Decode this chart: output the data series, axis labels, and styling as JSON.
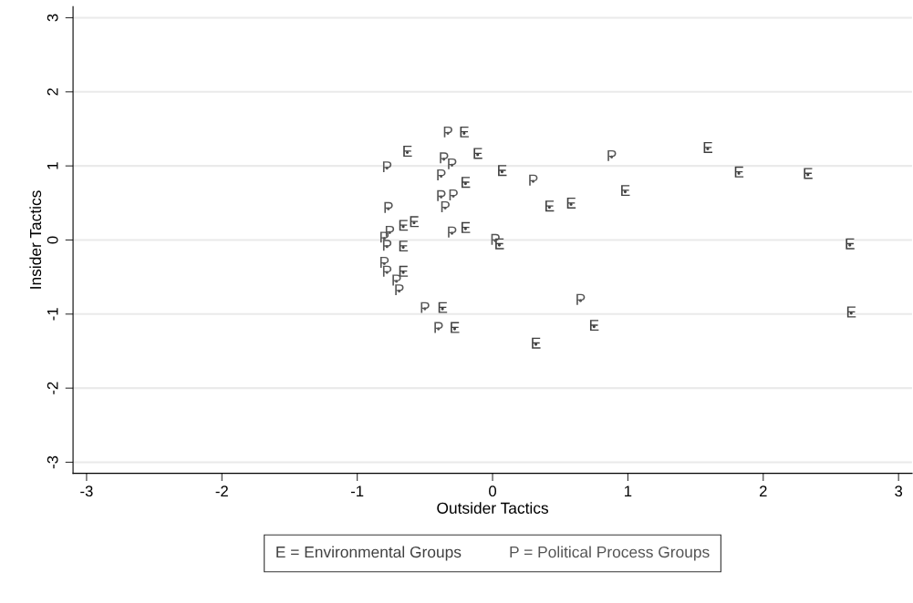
{
  "chart_data": {
    "type": "scatter",
    "xlabel": "Outsider Tactics",
    "ylabel": "Insider Tactics",
    "xlim": [
      -3.1,
      3.1
    ],
    "ylim": [
      -3.15,
      3.15
    ],
    "xticks": [
      -3,
      -2,
      -1,
      0,
      1,
      2,
      3
    ],
    "yticks": [
      -3,
      -2,
      -1,
      0,
      1,
      2,
      3
    ],
    "grid": "y",
    "legend": "bottom",
    "marker": "none",
    "series": [
      {
        "name": "E = Environmental Groups",
        "color": "#404040",
        "x": [
          -0.63,
          -0.21,
          -0.11,
          0.07,
          -0.2,
          0.98,
          0.58,
          0.42,
          1.59,
          1.82,
          2.33,
          2.64,
          2.65,
          0.75,
          0.32,
          -0.58,
          -0.66,
          -0.2,
          0.05,
          -0.66,
          -0.66,
          -0.37,
          -0.28
        ],
        "values": [
          1.18,
          1.44,
          1.15,
          0.92,
          0.76,
          0.65,
          0.48,
          0.44,
          1.23,
          0.9,
          0.88,
          -0.07,
          -0.99,
          -1.17,
          -1.41,
          0.23,
          0.18,
          0.15,
          -0.07,
          -0.1,
          -0.44,
          -0.93,
          -1.2
        ],
        "value_labels": [
          "E",
          "E",
          "E",
          "E",
          "E",
          "E",
          "E",
          "E",
          "E",
          "E",
          "E",
          "E",
          "E",
          "E",
          "E",
          "E",
          "E",
          "E",
          "E",
          "E",
          "E",
          "E",
          "E"
        ]
      },
      {
        "name": "P = Political Process Groups",
        "color": "#555555",
        "x": [
          -0.33,
          -0.78,
          -0.36,
          -0.3,
          -0.38,
          -0.38,
          -0.29,
          -0.35,
          -0.77,
          -0.3,
          -0.76,
          -0.8,
          -0.78,
          0.02,
          0.3,
          0.88,
          0.65,
          -0.8,
          -0.78,
          -0.71,
          -0.69,
          -0.5,
          -0.4
        ],
        "values": [
          1.44,
          0.97,
          1.09,
          1.01,
          0.86,
          0.58,
          0.59,
          0.43,
          0.42,
          0.09,
          0.1,
          0.02,
          -0.09,
          -0.01,
          0.79,
          1.12,
          -0.82,
          -0.32,
          -0.44,
          -0.56,
          -0.69,
          -0.93,
          -1.2
        ],
        "value_labels": [
          "P",
          "P",
          "P",
          "P",
          "P",
          "P",
          "P",
          "P",
          "P",
          "P",
          "P",
          "P",
          "P",
          "P",
          "P",
          "P",
          "P",
          "P",
          "P",
          "P",
          "P",
          "P",
          "P"
        ]
      }
    ]
  }
}
